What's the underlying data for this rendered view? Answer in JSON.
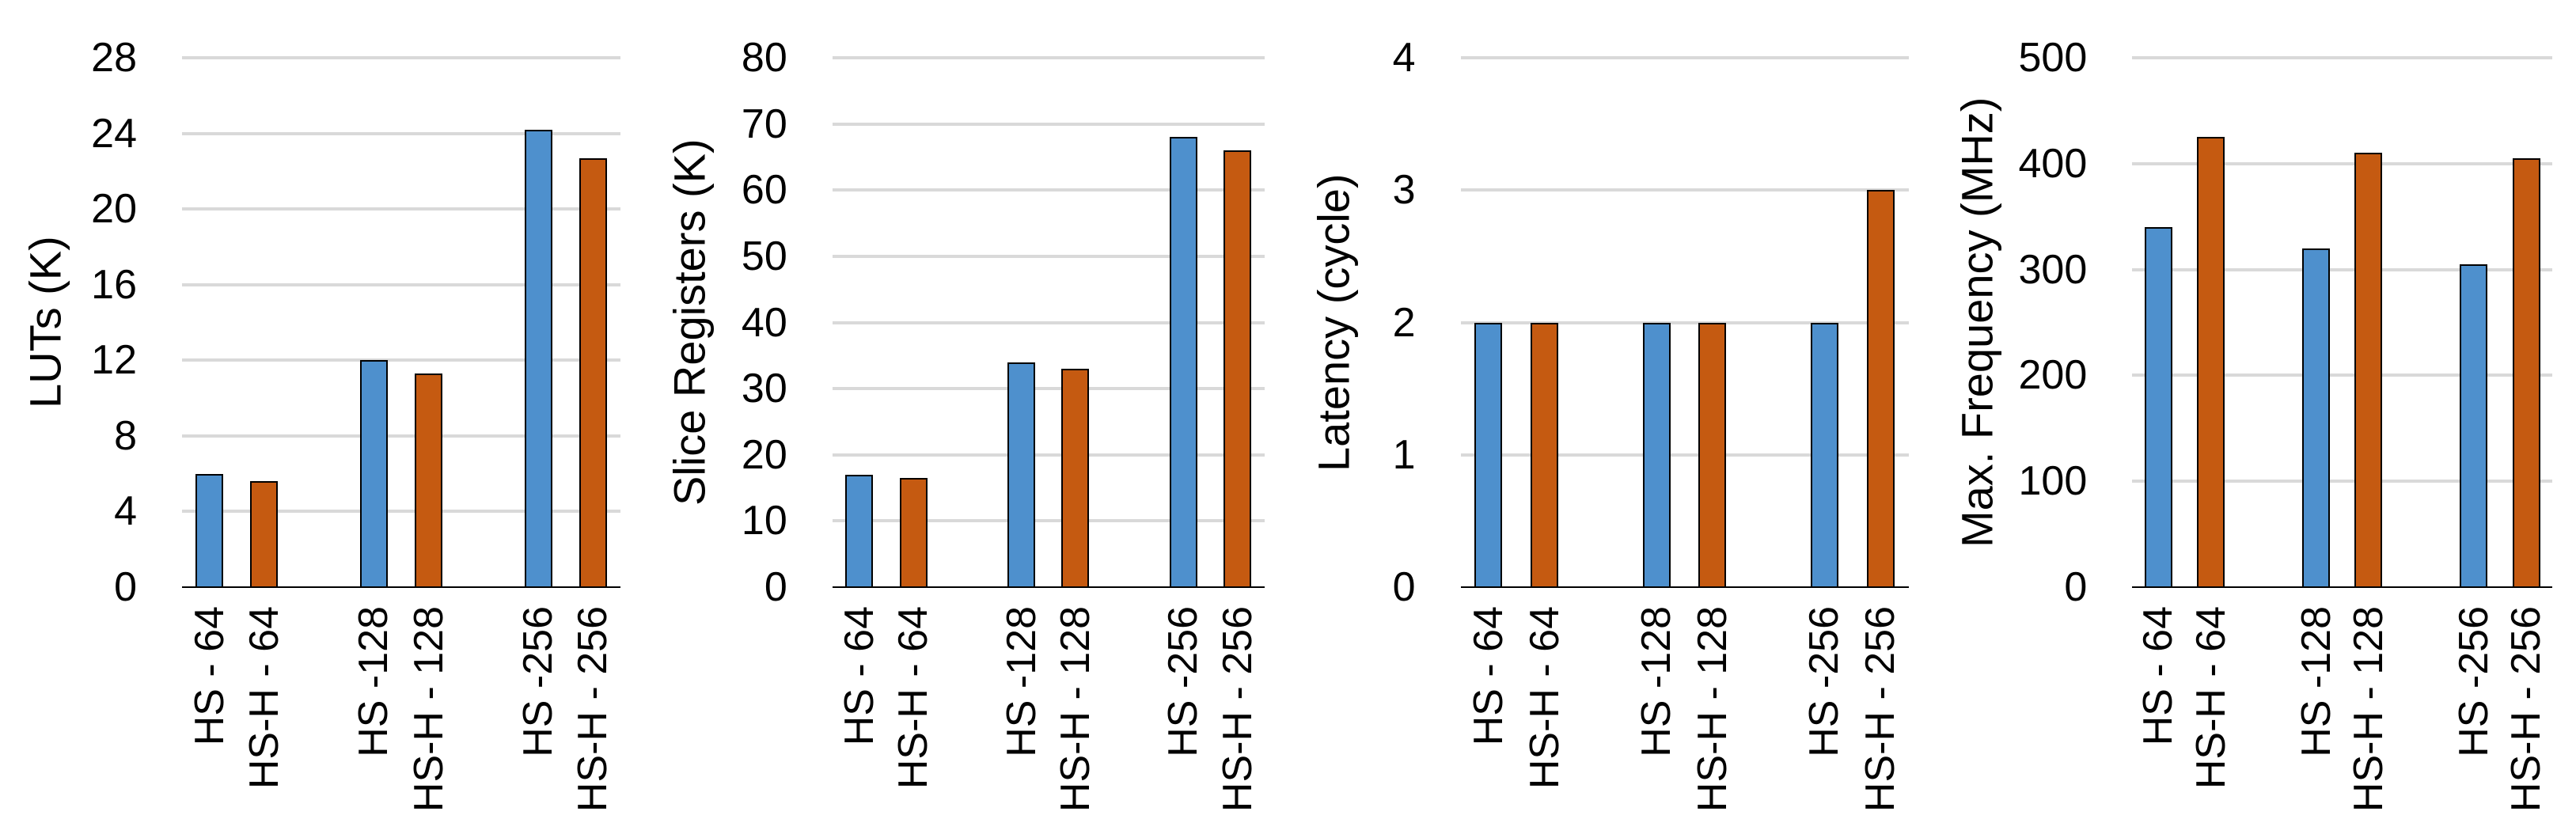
{
  "palette": {
    "series_hs": "#4E90CD",
    "series_hsh": "#C55A11",
    "gridline": "#D9D9D9",
    "axis_line": "#000000",
    "bar_border": "#000000",
    "text": "#000000",
    "background": "#FFFFFF"
  },
  "chart_data": [
    {
      "type": "bar",
      "title": "",
      "xlabel": "",
      "ylabel": "LUTs (K)",
      "ylim": [
        0,
        28
      ],
      "ytick_step": 4,
      "yticks": [
        0,
        4,
        8,
        12,
        16,
        20,
        24,
        28
      ],
      "grid": "horizontal",
      "legend": "none",
      "categories": [
        "HS - 64",
        "HS-H - 64",
        "HS -128",
        "HS-H - 128",
        "HS -256",
        "HS-H - 256"
      ],
      "series": [
        {
          "name": "HS",
          "color_key": "series_hs",
          "values": [
            6.0,
            12.0,
            24.2
          ]
        },
        {
          "name": "HS-H",
          "color_key": "series_hsh",
          "values": [
            5.6,
            11.3,
            22.7
          ]
        }
      ]
    },
    {
      "type": "bar",
      "title": "",
      "xlabel": "",
      "ylabel": "Slice Registers (K)",
      "ylim": [
        0,
        80
      ],
      "ytick_step": 10,
      "yticks": [
        0,
        10,
        20,
        30,
        40,
        50,
        60,
        70,
        80
      ],
      "grid": "horizontal",
      "legend": "none",
      "categories": [
        "HS - 64",
        "HS-H - 64",
        "HS -128",
        "HS-H - 128",
        "HS -256",
        "HS-H - 256"
      ],
      "series": [
        {
          "name": "HS",
          "color_key": "series_hs",
          "values": [
            17.0,
            34.0,
            68.0
          ]
        },
        {
          "name": "HS-H",
          "color_key": "series_hsh",
          "values": [
            16.5,
            33.0,
            66.0
          ]
        }
      ]
    },
    {
      "type": "bar",
      "title": "",
      "xlabel": "",
      "ylabel": "Latency (cycle)",
      "ylim": [
        0,
        4
      ],
      "ytick_step": 1,
      "yticks": [
        0,
        1,
        2,
        3,
        4
      ],
      "grid": "horizontal",
      "legend": "none",
      "categories": [
        "HS - 64",
        "HS-H - 64",
        "HS -128",
        "HS-H - 128",
        "HS -256",
        "HS-H - 256"
      ],
      "series": [
        {
          "name": "HS",
          "color_key": "series_hs",
          "values": [
            2,
            2,
            2
          ]
        },
        {
          "name": "HS-H",
          "color_key": "series_hsh",
          "values": [
            2,
            2,
            3
          ]
        }
      ]
    },
    {
      "type": "bar",
      "title": "",
      "xlabel": "",
      "ylabel": "Max. Frequency (MHz)",
      "ylim": [
        0,
        500
      ],
      "ytick_step": 100,
      "yticks": [
        0,
        100,
        200,
        300,
        400,
        500
      ],
      "grid": "horizontal",
      "legend": "none",
      "categories": [
        "HS - 64",
        "HS-H - 64",
        "HS -128",
        "HS-H - 128",
        "HS -256",
        "HS-H - 256"
      ],
      "series": [
        {
          "name": "HS",
          "color_key": "series_hs",
          "values": [
            340,
            320,
            305
          ]
        },
        {
          "name": "HS-H",
          "color_key": "series_hsh",
          "values": [
            425,
            410,
            405
          ]
        }
      ]
    }
  ]
}
